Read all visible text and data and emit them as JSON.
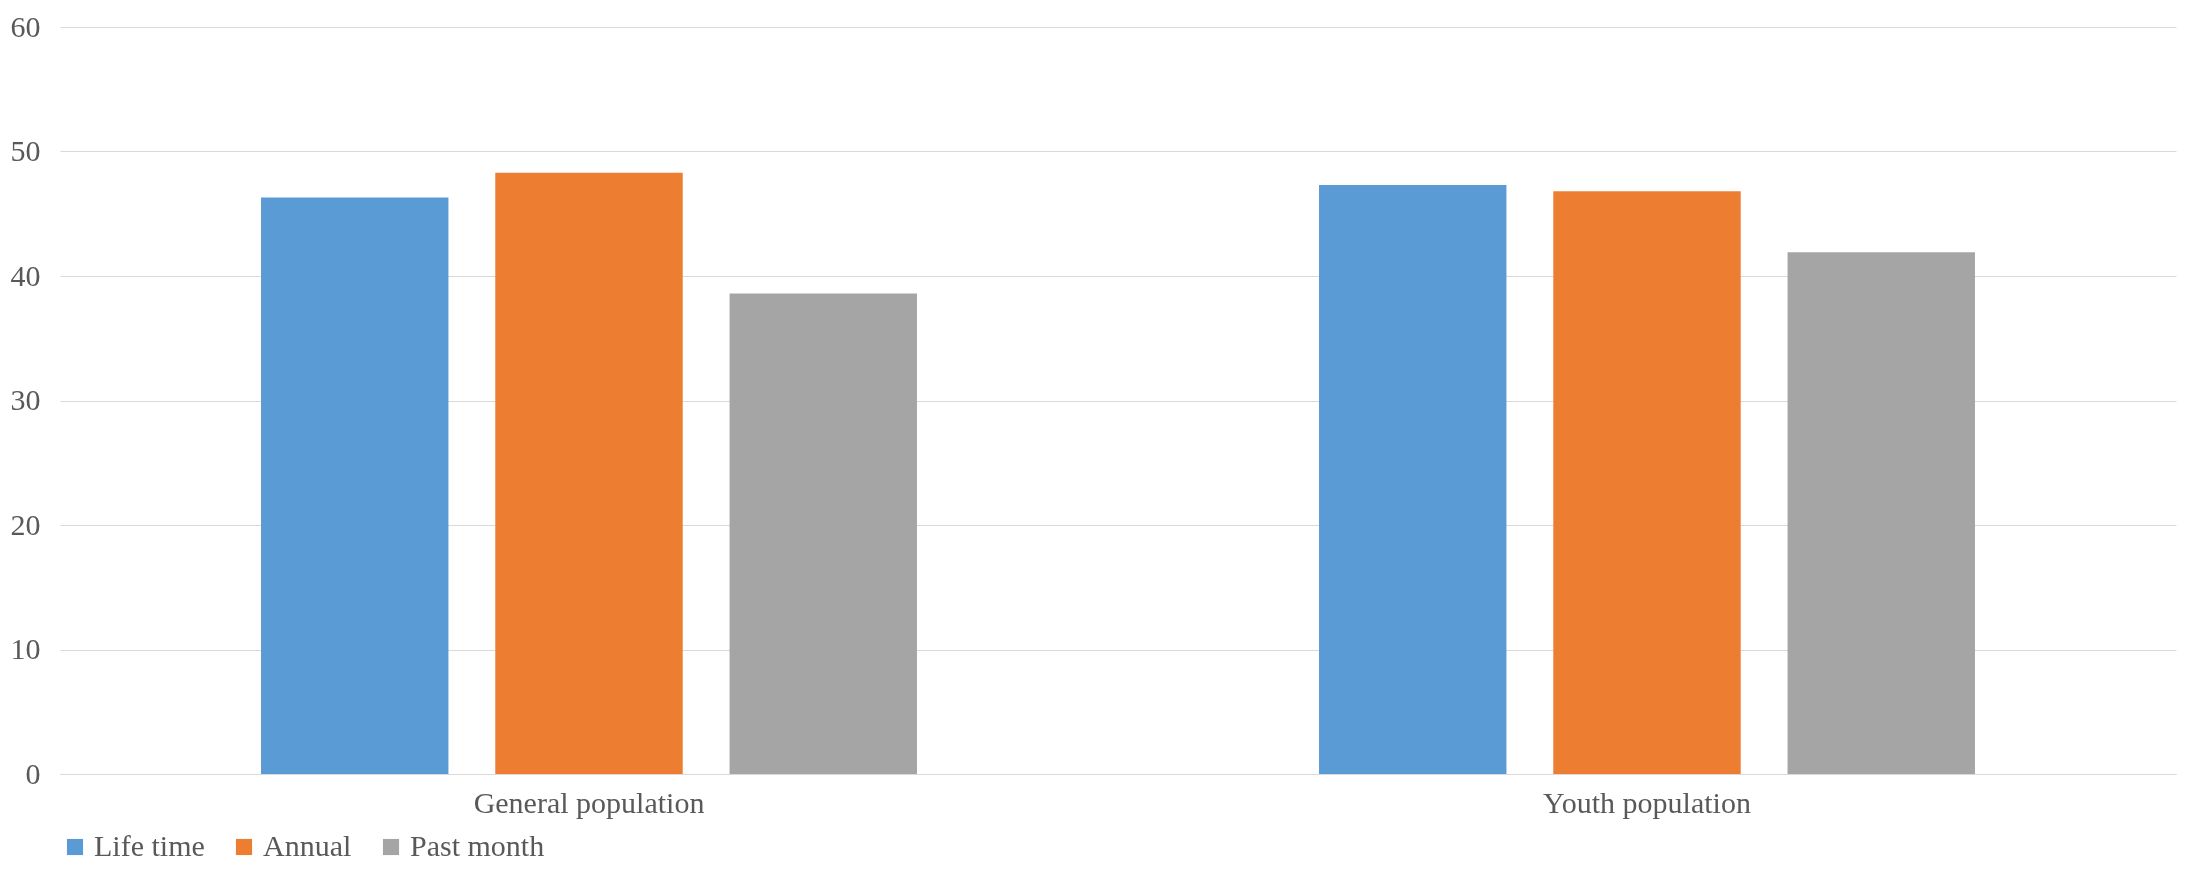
{
  "chart_data": {
    "type": "bar",
    "categories": [
      "General population",
      "Youth population"
    ],
    "series": [
      {
        "name": "Life time",
        "color": "#5b9bd5",
        "values": [
          46.3,
          47.3
        ]
      },
      {
        "name": "Annual",
        "color": "#ed7d31",
        "values": [
          48.3,
          46.8
        ]
      },
      {
        "name": "Past month",
        "color": "#a5a5a5",
        "values": [
          38.6,
          41.9
        ]
      }
    ],
    "ylim": [
      0,
      60
    ],
    "yticks": [
      0,
      10,
      20,
      30,
      40,
      50,
      60
    ],
    "grid": "y",
    "legend": "bottom"
  }
}
